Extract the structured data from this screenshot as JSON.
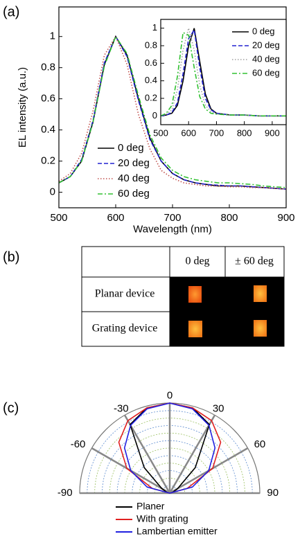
{
  "panel_labels": [
    "(a)",
    "(b)",
    "(c)"
  ],
  "chart_data": [
    {
      "type": "line",
      "xlabel": "Wavelength (nm)",
      "ylabel": "EL intensity (a.u.)",
      "x": [
        500,
        520,
        540,
        560,
        580,
        600,
        620,
        640,
        660,
        680,
        700,
        720,
        740,
        760,
        780,
        800,
        820,
        840,
        860,
        880,
        900
      ],
      "xlim": [
        500,
        900
      ],
      "xticks": [
        500,
        600,
        700,
        800,
        900
      ],
      "ylim": [
        -0.1,
        1.19
      ],
      "yticks": [
        0.0,
        0.2,
        0.4,
        0.6,
        0.8,
        1.0
      ],
      "legend": "lower center",
      "series": [
        {
          "name": "0 deg",
          "color": "#000000",
          "style": "solid",
          "values": [
            0.06,
            0.1,
            0.2,
            0.45,
            0.82,
            1.0,
            0.88,
            0.6,
            0.35,
            0.2,
            0.12,
            0.08,
            0.06,
            0.05,
            0.04,
            0.04,
            0.04,
            0.035,
            0.03,
            0.025,
            0.02
          ]
        },
        {
          "name": "20 deg",
          "color": "#2020d0",
          "style": "dashed",
          "values": [
            0.06,
            0.1,
            0.21,
            0.46,
            0.83,
            1.0,
            0.87,
            0.59,
            0.34,
            0.2,
            0.12,
            0.08,
            0.06,
            0.05,
            0.045,
            0.04,
            0.04,
            0.035,
            0.03,
            0.025,
            0.02
          ]
        },
        {
          "name": "40 deg",
          "color": "#c0504d",
          "style": "dotted",
          "values": [
            0.07,
            0.12,
            0.25,
            0.52,
            0.88,
            1.0,
            0.82,
            0.5,
            0.28,
            0.14,
            0.09,
            0.06,
            0.05,
            0.04,
            0.04,
            0.035,
            0.035,
            0.03,
            0.03,
            0.025,
            0.02
          ]
        },
        {
          "name": "60 deg",
          "color": "#30c030",
          "style": "dashdot",
          "values": [
            0.06,
            0.1,
            0.2,
            0.45,
            0.81,
            1.0,
            0.89,
            0.62,
            0.37,
            0.22,
            0.14,
            0.1,
            0.08,
            0.07,
            0.06,
            0.06,
            0.055,
            0.05,
            0.04,
            0.035,
            0.03
          ]
        }
      ]
    },
    {
      "type": "line",
      "x": [
        500,
        520,
        540,
        560,
        580,
        600,
        620,
        640,
        660,
        680,
        700,
        750,
        800,
        850,
        900,
        950
      ],
      "xlim": [
        500,
        950
      ],
      "xticks": [
        500,
        600,
        700,
        800,
        900
      ],
      "ylim": [
        -0.1,
        1.1
      ],
      "yticks": [
        0.0,
        0.2,
        0.4,
        0.6,
        0.8,
        1.0
      ],
      "legend": "upper right",
      "series": [
        {
          "name": "0 deg",
          "color": "#000000",
          "style": "solid",
          "values": [
            0.0,
            0.01,
            0.03,
            0.12,
            0.4,
            0.8,
            1.0,
            0.62,
            0.25,
            0.08,
            0.03,
            0.01,
            0.01,
            0.0,
            0.0,
            0.0
          ]
        },
        {
          "name": "20 deg",
          "color": "#2020d0",
          "style": "dashed",
          "values": [
            0.0,
            0.01,
            0.04,
            0.15,
            0.48,
            0.88,
            0.98,
            0.55,
            0.2,
            0.07,
            0.03,
            0.01,
            0.01,
            0.0,
            0.0,
            0.0
          ]
        },
        {
          "name": "40 deg",
          "color": "#a0a0a0",
          "style": "dotted",
          "values": [
            0.0,
            0.02,
            0.07,
            0.3,
            0.75,
            1.0,
            0.75,
            0.35,
            0.12,
            0.05,
            0.02,
            0.01,
            0.01,
            0.0,
            0.0,
            0.0
          ]
        },
        {
          "name": "60 deg",
          "color": "#30c030",
          "style": "dashdot",
          "values": [
            0.0,
            0.03,
            0.12,
            0.45,
            0.95,
            0.92,
            0.55,
            0.22,
            0.08,
            0.03,
            0.02,
            0.01,
            0.01,
            0.0,
            0.0,
            0.0
          ]
        }
      ]
    },
    {
      "type": "polar",
      "theta": [
        -90,
        -75,
        -60,
        -45,
        -30,
        -15,
        0,
        15,
        30,
        45,
        60,
        75,
        90
      ],
      "thetaticks": [
        -90,
        -60,
        -30,
        0,
        30,
        60,
        90
      ],
      "rlim": [
        0,
        1
      ],
      "grid": true,
      "legend": "below",
      "series": [
        {
          "name": "Planer",
          "color": "#000000",
          "values": [
            0.0,
            0.03,
            0.1,
            0.4,
            0.88,
            0.98,
            1.0,
            0.98,
            0.88,
            0.4,
            0.1,
            0.03,
            0.0
          ]
        },
        {
          "name": "With grating",
          "color": "#e02020",
          "values": [
            0.0,
            0.2,
            0.55,
            0.8,
            0.93,
            0.98,
            1.0,
            0.98,
            0.93,
            0.8,
            0.55,
            0.2,
            0.0
          ]
        },
        {
          "name": "Lambertian emitter",
          "color": "#2020e0",
          "values": [
            0.0,
            0.26,
            0.5,
            0.71,
            0.87,
            0.97,
            1.0,
            0.97,
            0.87,
            0.71,
            0.5,
            0.26,
            0.0
          ]
        }
      ]
    }
  ],
  "table": {
    "columns": [
      "0 deg",
      "± 60 deg"
    ],
    "rows": [
      "Planar device",
      "Grating device"
    ]
  }
}
